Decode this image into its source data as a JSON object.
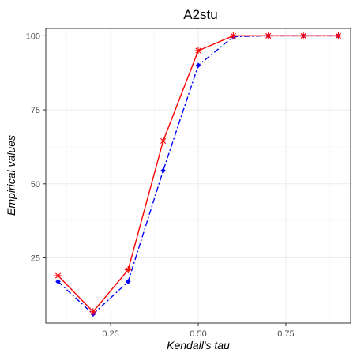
{
  "chart_data": {
    "type": "line",
    "title": "A2stu",
    "xlabel": "Kendall's tau",
    "ylabel": "Empirical values",
    "xlim": [
      0.065,
      0.935
    ],
    "ylim": [
      3.0,
      102.5
    ],
    "x_ticks": [
      0.25,
      0.5,
      0.75
    ],
    "x_tick_labels": [
      "0.25",
      "0.50",
      "0.75"
    ],
    "x_minor": [
      0.125,
      0.375,
      0.625,
      0.875
    ],
    "y_ticks": [
      25,
      50,
      75,
      100
    ],
    "y_tick_labels": [
      "25",
      "50",
      "75",
      "100"
    ],
    "y_minor": [
      12.5,
      37.5,
      62.5,
      87.5
    ],
    "grid": true,
    "x": [
      0.1,
      0.2,
      0.3,
      0.4,
      0.5,
      0.6,
      0.7,
      0.8,
      0.9
    ],
    "series": [
      {
        "color": "#ff0000",
        "line_style": "solid",
        "marker": "asterisk",
        "values": [
          19.0,
          6.8,
          21.0,
          64.5,
          95.0,
          100.0,
          100.0,
          100.0,
          100.0
        ]
      },
      {
        "color": "#0000ff",
        "line_style": "dashdot",
        "marker": "diamond",
        "values": [
          17.0,
          6.0,
          17.0,
          54.5,
          90.0,
          99.7,
          100.0,
          100.0,
          100.0
        ]
      }
    ]
  }
}
